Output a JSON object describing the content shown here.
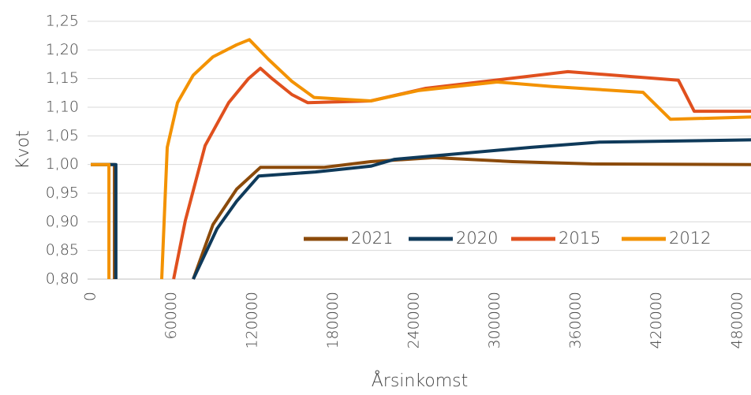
{
  "chart_data": {
    "type": "line",
    "y_label": "Kvot",
    "x_label": "Årsinkomst",
    "xlim": [
      0,
      490000
    ],
    "ylim": [
      0.8,
      1.25
    ],
    "xticks": [
      0,
      60000,
      120000,
      180000,
      240000,
      300000,
      360000,
      420000,
      480000
    ],
    "yticks": [
      {
        "value": 0.8,
        "label": "0,80"
      },
      {
        "value": 0.85,
        "label": "0,85"
      },
      {
        "value": 0.9,
        "label": "0,90"
      },
      {
        "value": 0.95,
        "label": "0,95"
      },
      {
        "value": 1.0,
        "label": "1,00"
      },
      {
        "value": 1.05,
        "label": "1,05"
      },
      {
        "value": 1.1,
        "label": "1,10"
      },
      {
        "value": 1.15,
        "label": "1,15"
      },
      {
        "value": 1.2,
        "label": "1,20"
      },
      {
        "value": 1.25,
        "label": "1,25"
      }
    ],
    "grid": true,
    "legend": "bottom-right",
    "series": [
      {
        "name": "2021",
        "color": "#8b4a0a",
        "x": [
          0,
          17600,
          17600,
          null,
          76100,
          90700,
          108300,
          125900,
          172700,
          207800,
          254600,
          313200,
          371700,
          490000
        ],
        "values": [
          1.0,
          1.0,
          0.8,
          null,
          0.8,
          0.895,
          0.957,
          0.995,
          0.995,
          1.005,
          1.012,
          1.005,
          1.001,
          1.0
        ]
      },
      {
        "name": "2020",
        "color": "#0f3a5a",
        "x": [
          0,
          18700,
          18700,
          null,
          76100,
          93700,
          108300,
          124700,
          166800,
          207800,
          225400,
          326800,
          377600,
          490000
        ],
        "values": [
          1.0,
          1.0,
          0.8,
          null,
          0.8,
          0.888,
          0.936,
          0.98,
          0.987,
          0.997,
          1.009,
          1.03,
          1.039,
          1.043
        ]
      },
      {
        "name": "2015",
        "color": "#e0501e",
        "x": [
          61500,
          70200,
          84900,
          102400,
          117100,
          125900,
          134600,
          149300,
          161000,
          207800,
          248800,
          354100,
          436100,
          447800,
          490000
        ],
        "values": [
          0.8,
          0.902,
          1.033,
          1.108,
          1.15,
          1.168,
          1.15,
          1.122,
          1.108,
          1.111,
          1.133,
          1.162,
          1.147,
          1.093,
          1.093
        ]
      },
      {
        "name": "2012",
        "color": "#f39200",
        "x": [
          0,
          13500,
          13500,
          null,
          52700,
          56800,
          64400,
          76100,
          90700,
          108300,
          117700,
          131700,
          149300,
          165700,
          207800,
          243000,
          301500,
          342400,
          409800,
          430200,
          490000
        ],
        "values": [
          1.0,
          1.0,
          0.8,
          null,
          0.8,
          1.03,
          1.108,
          1.156,
          1.188,
          1.209,
          1.218,
          1.184,
          1.145,
          1.117,
          1.111,
          1.129,
          1.144,
          1.136,
          1.126,
          1.079,
          1.083
        ]
      }
    ]
  }
}
